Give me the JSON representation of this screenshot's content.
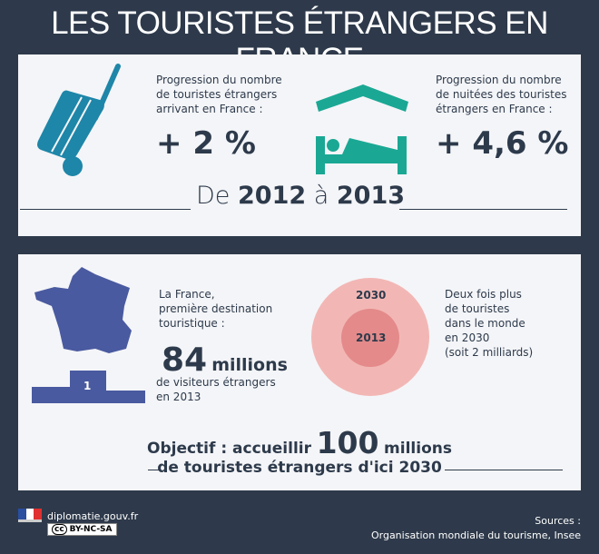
{
  "title": "LES TOURISTES ÉTRANGERS EN FRANCE",
  "section1": {
    "left_text": [
      "Progression du nombre",
      "de touristes étrangers",
      "arrivant en France :"
    ],
    "left_value": "+ 2 %",
    "right_text": [
      "Progression du nombre",
      "de nuitées des touristes",
      "étrangers en France :"
    ],
    "right_value": "+ 4,6 %",
    "period_de": "De",
    "period_from": "2012",
    "period_a": "à",
    "period_to": "2013"
  },
  "section2": {
    "france_text": [
      "La France,",
      "première destination",
      "touristique :"
    ],
    "podium_rank": "1",
    "visitors_number": "84",
    "visitors_unit": "millions",
    "visitors_text": [
      "de visiteurs étrangers",
      "en 2013"
    ],
    "circle_outer_label": "2030",
    "circle_inner_label": "2013",
    "world_text": [
      "Deux fois plus",
      "de touristes",
      "dans le monde",
      "en 2030",
      "(soit 2 milliards)"
    ],
    "objective_prefix": "Objectif : accueillir",
    "objective_number": "100",
    "objective_unit": "millions",
    "objective_line2": "de touristes étrangers d'ici 2030"
  },
  "footer": {
    "site": "diplomatie.gouv.fr",
    "license": "BY-NC-SA",
    "license_icon": "cc",
    "sources_label": "Sources :",
    "sources": "Organisation mondiale du tourisme, Insee"
  },
  "colors": {
    "background": "#2e3a4b",
    "panel": "#f4f5f8",
    "luggage": "#1e86a8",
    "bed": "#1aa894",
    "france": "#4a5aa0",
    "circle_outer": "#f2b7b5",
    "circle_inner": "#e48a8a"
  }
}
